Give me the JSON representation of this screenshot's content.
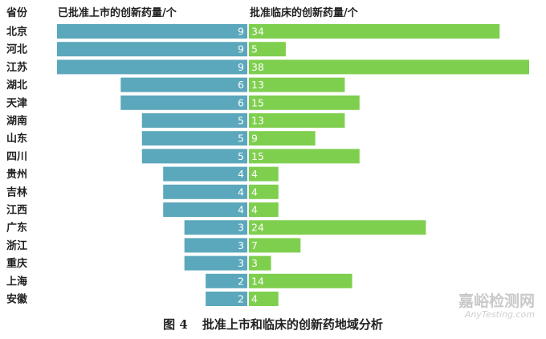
{
  "chart_data": {
    "type": "bar",
    "layout": "diverging-horizontal",
    "categories": [
      "北京",
      "河北",
      "江苏",
      "湖北",
      "天津",
      "湖南",
      "山东",
      "四川",
      "贵州",
      "吉林",
      "江西",
      "广东",
      "浙江",
      "重庆",
      "上海",
      "安徽"
    ],
    "category_header": "省份",
    "series": [
      {
        "name": "已批准上市的创新药量/个",
        "color": "#5ba7bb",
        "values": [
          9,
          9,
          9,
          6,
          6,
          5,
          5,
          5,
          4,
          4,
          4,
          3,
          3,
          3,
          2,
          2
        ]
      },
      {
        "name": "批准临床的创新药量/个",
        "color": "#7ecf4e",
        "values": [
          34,
          5,
          38,
          13,
          15,
          13,
          9,
          15,
          4,
          4,
          4,
          24,
          7,
          3,
          14,
          4
        ]
      }
    ]
  },
  "caption": {
    "label": "图 4",
    "text": "批准上市和临床的创新药地域分析"
  },
  "watermark": {
    "cn": "嘉峪检测网",
    "en": "AnyTesting.com"
  }
}
